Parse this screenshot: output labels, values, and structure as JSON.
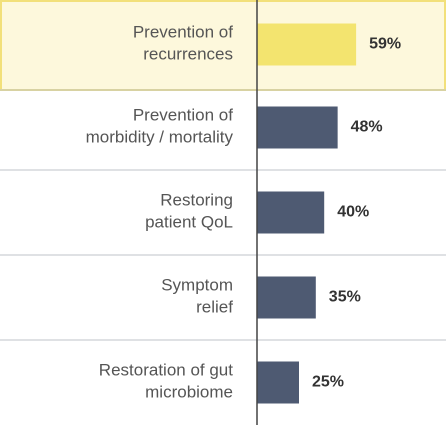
{
  "chart_data": {
    "type": "bar",
    "orientation": "horizontal",
    "categories": [
      "Prevention of\nrecurrences",
      "Prevention of\nmorbidity / mortality",
      "Restoring\npatient QoL",
      "Symptom\nrelief",
      "Restoration of gut\nmicrobiome"
    ],
    "values": [
      59,
      48,
      40,
      35,
      25
    ],
    "value_labels": [
      "59%",
      "48%",
      "40%",
      "35%",
      "25%"
    ],
    "colors": [
      "#f3e46f",
      "#4e5a72",
      "#4e5a72",
      "#4e5a72",
      "#4e5a72"
    ],
    "highlight_color": "#fdf8dc",
    "xlim": [
      0,
      100
    ]
  }
}
